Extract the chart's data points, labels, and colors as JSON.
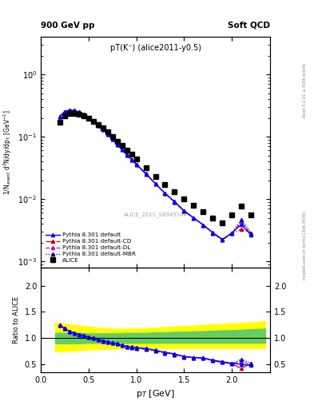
{
  "title_top": "900 GeV pp",
  "title_right": "Soft QCD",
  "plot_title": "pT(K⁻) (alice2011-y0.5)",
  "watermark": "ALICE_2011_S8945144",
  "rivet_label": "Rivet 3.1.10, ≥ 500k events",
  "mcplots_label": "mcplots.cern.ch [arXiv:1306.3436]",
  "xlabel": "p$_T$ [GeV]",
  "ylabel_main": "1/N$_{event}$ d$^2$N/dy/dp$_T$ [GeV$^{-1}$]",
  "ylabel_ratio": "Ratio to ALICE",
  "alice_pt": [
    0.2,
    0.25,
    0.3,
    0.35,
    0.4,
    0.45,
    0.5,
    0.55,
    0.6,
    0.65,
    0.7,
    0.75,
    0.8,
    0.85,
    0.9,
    0.95,
    1.0,
    1.1,
    1.2,
    1.3,
    1.4,
    1.5,
    1.6,
    1.7,
    1.8,
    1.9,
    2.0,
    2.1,
    2.2
  ],
  "alice_y": [
    0.17,
    0.215,
    0.235,
    0.238,
    0.232,
    0.218,
    0.198,
    0.178,
    0.157,
    0.137,
    0.118,
    0.1,
    0.085,
    0.072,
    0.061,
    0.052,
    0.044,
    0.032,
    0.023,
    0.017,
    0.013,
    0.01,
    0.0079,
    0.0062,
    0.005,
    0.0041,
    0.0055,
    0.0078,
    0.0055
  ],
  "alice_yerr": [
    0.008,
    0.008,
    0.007,
    0.007,
    0.007,
    0.006,
    0.006,
    0.005,
    0.005,
    0.005,
    0.004,
    0.004,
    0.003,
    0.003,
    0.003,
    0.002,
    0.002,
    0.002,
    0.001,
    0.001,
    0.001,
    0.0008,
    0.0006,
    0.0005,
    0.0004,
    0.0003,
    0.0004,
    0.0005,
    0.0004
  ],
  "pt_mc": [
    0.2,
    0.25,
    0.3,
    0.35,
    0.4,
    0.45,
    0.5,
    0.55,
    0.6,
    0.65,
    0.7,
    0.75,
    0.8,
    0.85,
    0.9,
    0.95,
    1.0,
    1.1,
    1.2,
    1.3,
    1.4,
    1.5,
    1.6,
    1.7,
    1.8,
    1.9,
    2.0,
    2.1,
    2.2
  ],
  "ratio_default": [
    1.25,
    1.18,
    1.13,
    1.1,
    1.07,
    1.05,
    1.02,
    1.0,
    0.97,
    0.95,
    0.93,
    0.91,
    0.89,
    0.86,
    0.84,
    0.83,
    0.82,
    0.8,
    0.77,
    0.73,
    0.7,
    0.65,
    0.63,
    0.62,
    0.58,
    0.55,
    0.52,
    0.5,
    0.48
  ],
  "ratio_cd": [
    1.25,
    1.18,
    1.13,
    1.1,
    1.07,
    1.05,
    1.02,
    1.0,
    0.97,
    0.95,
    0.93,
    0.91,
    0.89,
    0.86,
    0.84,
    0.82,
    0.81,
    0.79,
    0.76,
    0.72,
    0.69,
    0.64,
    0.63,
    0.62,
    0.57,
    0.54,
    0.51,
    0.42,
    0.52
  ],
  "ratio_dl": [
    1.25,
    1.18,
    1.13,
    1.1,
    1.07,
    1.05,
    1.02,
    1.0,
    0.97,
    0.95,
    0.93,
    0.91,
    0.89,
    0.86,
    0.84,
    0.82,
    0.81,
    0.79,
    0.76,
    0.72,
    0.69,
    0.64,
    0.63,
    0.62,
    0.57,
    0.54,
    0.51,
    0.55,
    0.5
  ],
  "ratio_mbr": [
    1.25,
    1.18,
    1.13,
    1.1,
    1.07,
    1.05,
    1.02,
    1.0,
    0.97,
    0.95,
    0.93,
    0.91,
    0.89,
    0.86,
    0.84,
    0.82,
    0.81,
    0.79,
    0.76,
    0.72,
    0.69,
    0.64,
    0.63,
    0.62,
    0.57,
    0.54,
    0.51,
    0.6,
    0.52
  ],
  "color_default": "#0000ff",
  "color_cd": "#cc0000",
  "color_dl": "#cc00cc",
  "color_mbr": "#0000aa",
  "color_alice": "#000000",
  "ylim_main": [
    0.0008,
    4.0
  ],
  "xlim": [
    0.0,
    2.4
  ],
  "ylim_ratio": [
    0.35,
    2.35
  ],
  "ratio_yticks": [
    0.5,
    1.0,
    1.5,
    2.0
  ],
  "band_pt": [
    0.15,
    0.2,
    0.3,
    0.4,
    0.5,
    0.6,
    0.7,
    0.8,
    0.9,
    1.0,
    1.1,
    1.2,
    1.3,
    1.4,
    1.5,
    1.6,
    1.7,
    1.8,
    1.9,
    2.0,
    2.1,
    2.2,
    2.35
  ],
  "band_green_lo": [
    0.9,
    0.9,
    0.9,
    0.9,
    0.91,
    0.91,
    0.91,
    0.91,
    0.91,
    0.91,
    0.91,
    0.91,
    0.91,
    0.91,
    0.91,
    0.91,
    0.91,
    0.91,
    0.91,
    0.91,
    0.91,
    0.91,
    0.91
  ],
  "band_green_hi": [
    1.1,
    1.1,
    1.1,
    1.1,
    1.09,
    1.09,
    1.09,
    1.09,
    1.1,
    1.1,
    1.1,
    1.11,
    1.11,
    1.12,
    1.12,
    1.13,
    1.13,
    1.14,
    1.15,
    1.15,
    1.16,
    1.17,
    1.18
  ],
  "band_yellow_lo": [
    0.75,
    0.75,
    0.76,
    0.77,
    0.78,
    0.79,
    0.8,
    0.8,
    0.81,
    0.81,
    0.81,
    0.81,
    0.81,
    0.81,
    0.81,
    0.81,
    0.81,
    0.81,
    0.81,
    0.81,
    0.81,
    0.81,
    0.81
  ],
  "band_yellow_hi": [
    1.3,
    1.28,
    1.26,
    1.24,
    1.22,
    1.2,
    1.18,
    1.18,
    1.18,
    1.18,
    1.19,
    1.2,
    1.21,
    1.22,
    1.23,
    1.24,
    1.25,
    1.26,
    1.27,
    1.28,
    1.29,
    1.3,
    1.32
  ]
}
